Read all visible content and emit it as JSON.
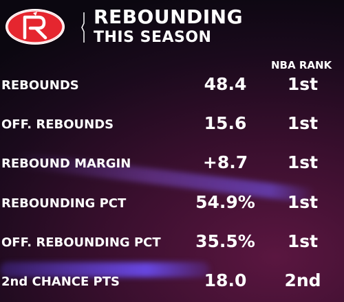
{
  "header": {
    "title": "REBOUNDING",
    "subtitle": "THIS SEASON",
    "logo_icon": "houston-rockets-logo",
    "accent_color": "#e5262f"
  },
  "table": {
    "rank_header": "NBA RANK",
    "rows": [
      {
        "label": "REBOUNDS",
        "value": "48.4",
        "rank": "1st"
      },
      {
        "label": "OFF. REBOUNDS",
        "value": "15.6",
        "rank": "1st"
      },
      {
        "label": "REBOUND MARGIN",
        "value": "+8.7",
        "rank": "1st"
      },
      {
        "label": "REBOUNDING PCT",
        "value": "54.9%",
        "rank": "1st"
      },
      {
        "label": "OFF. REBOUNDING PCT",
        "value": "35.5%",
        "rank": "1st"
      },
      {
        "label": "2nd CHANCE PTS",
        "value": "18.0",
        "rank": "2nd"
      }
    ]
  }
}
